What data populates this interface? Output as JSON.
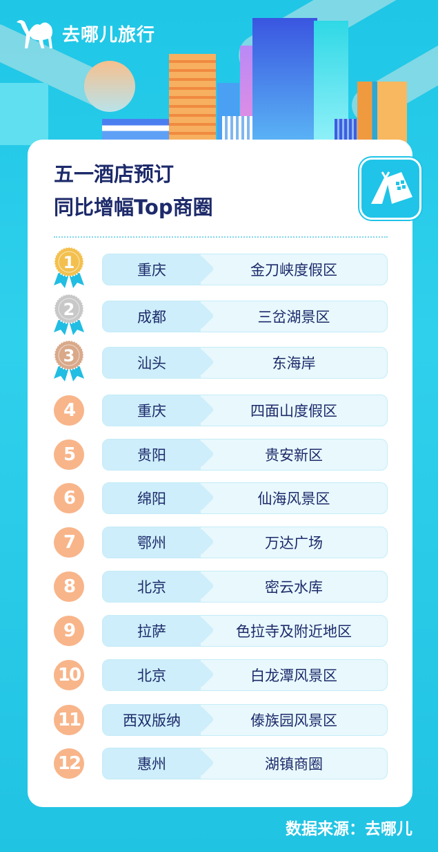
{
  "brand": {
    "name": "去哪儿旅行",
    "logo_icon": "camel-icon"
  },
  "card": {
    "title_line1": "五一酒店预订",
    "title_line2": "同比增幅Top商圈",
    "badge_icon": "tent-hotel-icon"
  },
  "colors": {
    "background": "#22c8e6",
    "title": "#1d2a6a",
    "rank_circle": "#f8b58a",
    "gold": "#f3c04f",
    "silver": "#c8c8c8",
    "bronze": "#d9a98a"
  },
  "ranking": [
    {
      "rank": "1",
      "city": "重庆",
      "area": "金刀峡度假区",
      "medal": "gold"
    },
    {
      "rank": "2",
      "city": "成都",
      "area": "三岔湖景区",
      "medal": "silver"
    },
    {
      "rank": "3",
      "city": "汕头",
      "area": "东海岸",
      "medal": "bronze"
    },
    {
      "rank": "4",
      "city": "重庆",
      "area": "四面山度假区"
    },
    {
      "rank": "5",
      "city": "贵阳",
      "area": "贵安新区"
    },
    {
      "rank": "6",
      "city": "绵阳",
      "area": "仙海风景区"
    },
    {
      "rank": "7",
      "city": "鄂州",
      "area": "万达广场"
    },
    {
      "rank": "8",
      "city": "北京",
      "area": "密云水库"
    },
    {
      "rank": "9",
      "city": "拉萨",
      "area": "色拉寺及附近地区"
    },
    {
      "rank": "10",
      "city": "北京",
      "area": "白龙潭风景区"
    },
    {
      "rank": "11",
      "city": "西双版纳",
      "area": "傣族园风景区"
    },
    {
      "rank": "12",
      "city": "惠州",
      "area": "湖镇商圈"
    }
  ],
  "footer": {
    "source": "数据来源：去哪儿"
  }
}
